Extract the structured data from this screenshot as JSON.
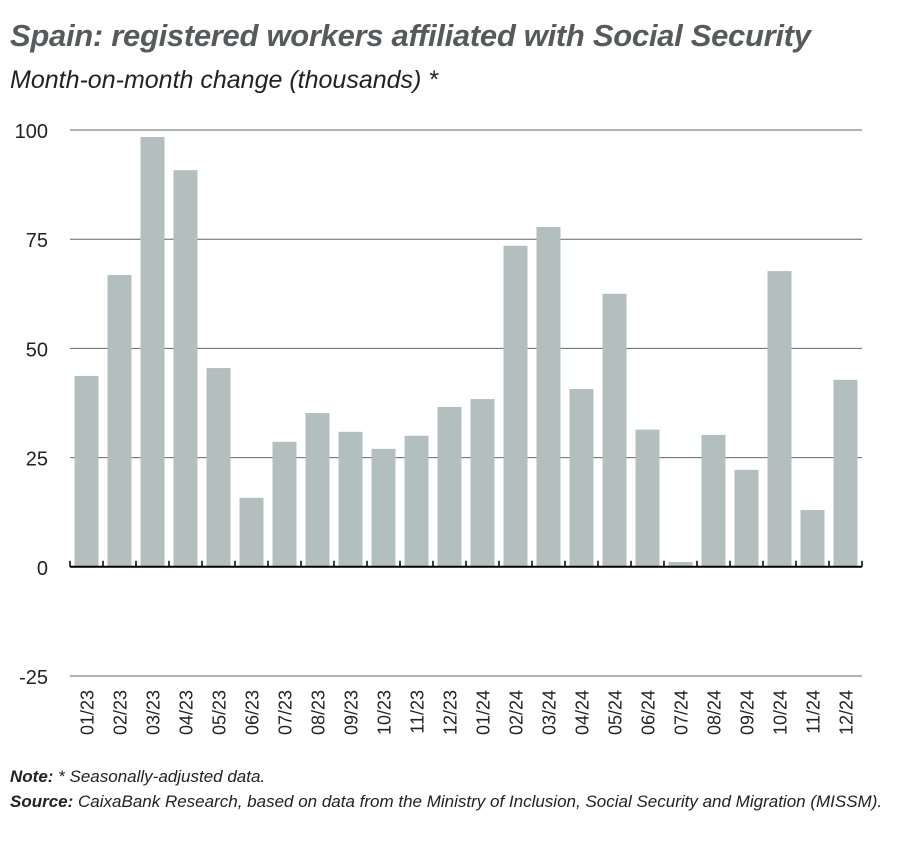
{
  "chart_data": {
    "type": "bar",
    "title": "Spain: registered workers affiliated with Social Security",
    "subtitle": "Month-on-month change (thousands) *",
    "categories": [
      "01/23",
      "02/23",
      "03/23",
      "04/23",
      "05/23",
      "06/23",
      "07/23",
      "08/23",
      "09/23",
      "10/23",
      "11/23",
      "12/23",
      "01/24",
      "02/24",
      "03/24",
      "04/24",
      "05/24",
      "06/24",
      "07/24",
      "08/24",
      "09/24",
      "10/24",
      "11/24",
      "12/24"
    ],
    "values": [
      43.7,
      66.8,
      98.4,
      90.8,
      45.5,
      15.8,
      28.6,
      35.2,
      30.9,
      27.0,
      30.0,
      36.6,
      38.4,
      73.5,
      77.8,
      40.7,
      62.5,
      31.4,
      1.1,
      30.2,
      22.2,
      67.7,
      13.0,
      42.8
    ],
    "ylim": [
      -25,
      100
    ],
    "yticks": [
      -25,
      0,
      25,
      50,
      75,
      100
    ],
    "grid": true,
    "bar_color": "#b3bfbf"
  },
  "notes": {
    "note_label": "Note:",
    "note_text": " * Seasonally-adjusted data.",
    "source_label": "Source:",
    "source_text": " CaixaBank Research, based on data from the Ministry of Inclusion, Social Security and Migration (MISSM)."
  }
}
